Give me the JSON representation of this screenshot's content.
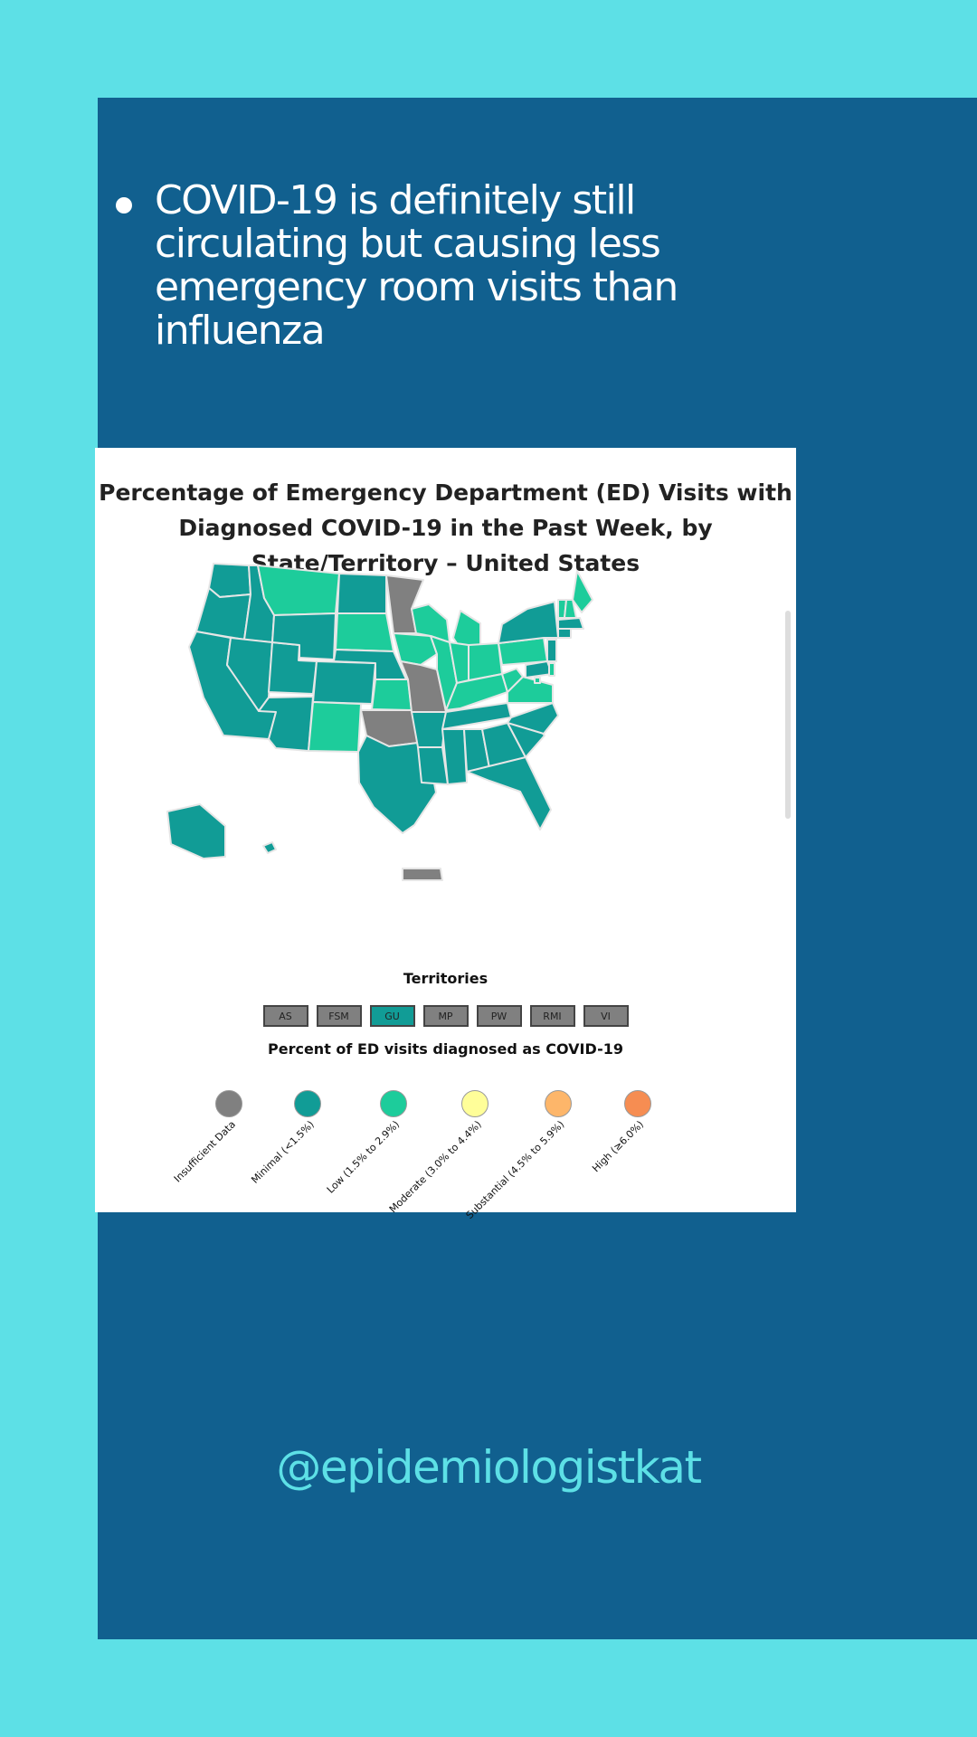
{
  "bullet": {
    "text": "COVID-19 is definitely still circulating but causing less emergency room visits than influenza"
  },
  "map": {
    "title": "Percentage of Emergency Department (ED) Visits with Diagnosed COVID-19 in the Past Week, by State/Territory – United States",
    "states": [
      {
        "name": "WA",
        "level": "minimal"
      },
      {
        "name": "OR",
        "level": "minimal"
      },
      {
        "name": "CA",
        "level": "minimal"
      },
      {
        "name": "ID",
        "level": "minimal"
      },
      {
        "name": "NV",
        "level": "minimal"
      },
      {
        "name": "UT",
        "level": "minimal"
      },
      {
        "name": "AZ",
        "level": "minimal"
      },
      {
        "name": "MT",
        "level": "low"
      },
      {
        "name": "WY",
        "level": "minimal"
      },
      {
        "name": "CO",
        "level": "minimal"
      },
      {
        "name": "NM",
        "level": "low"
      },
      {
        "name": "ND",
        "level": "minimal"
      },
      {
        "name": "SD",
        "level": "low"
      },
      {
        "name": "NE",
        "level": "minimal"
      },
      {
        "name": "KS",
        "level": "low"
      },
      {
        "name": "OK",
        "level": "insufficient"
      },
      {
        "name": "TX",
        "level": "minimal"
      },
      {
        "name": "MN",
        "level": "insufficient"
      },
      {
        "name": "IA",
        "level": "low"
      },
      {
        "name": "MO",
        "level": "insufficient"
      },
      {
        "name": "AR",
        "level": "minimal"
      },
      {
        "name": "LA",
        "level": "minimal"
      },
      {
        "name": "WI",
        "level": "low"
      },
      {
        "name": "IL",
        "level": "low"
      },
      {
        "name": "MI",
        "level": "low"
      },
      {
        "name": "IN",
        "level": "low"
      },
      {
        "name": "OH",
        "level": "low"
      },
      {
        "name": "KY",
        "level": "low"
      },
      {
        "name": "TN",
        "level": "minimal"
      },
      {
        "name": "MS",
        "level": "minimal"
      },
      {
        "name": "AL",
        "level": "minimal"
      },
      {
        "name": "GA",
        "level": "minimal"
      },
      {
        "name": "FL",
        "level": "minimal"
      },
      {
        "name": "SC",
        "level": "minimal"
      },
      {
        "name": "NC",
        "level": "minimal"
      },
      {
        "name": "VA",
        "level": "low"
      },
      {
        "name": "WV",
        "level": "low"
      },
      {
        "name": "PA",
        "level": "low"
      },
      {
        "name": "NY",
        "level": "minimal"
      },
      {
        "name": "ME",
        "level": "low"
      },
      {
        "name": "VT",
        "level": "low"
      },
      {
        "name": "NH",
        "level": "low"
      },
      {
        "name": "MA",
        "level": "minimal"
      },
      {
        "name": "CT",
        "level": "minimal"
      },
      {
        "name": "NJ",
        "level": "minimal"
      },
      {
        "name": "MD",
        "level": "minimal"
      },
      {
        "name": "DE",
        "level": "low"
      },
      {
        "name": "DC",
        "level": "low"
      },
      {
        "name": "AK",
        "level": "minimal"
      },
      {
        "name": "HI",
        "level": "minimal"
      },
      {
        "name": "PR",
        "level": "insufficient"
      }
    ],
    "territories_title": "Territories",
    "territories": [
      {
        "label": "AS",
        "level": "insufficient"
      },
      {
        "label": "FSM",
        "level": "insufficient"
      },
      {
        "label": "GU",
        "level": "minimal"
      },
      {
        "label": "MP",
        "level": "insufficient"
      },
      {
        "label": "PW",
        "level": "insufficient"
      },
      {
        "label": "RMI",
        "level": "insufficient"
      },
      {
        "label": "VI",
        "level": "insufficient"
      }
    ],
    "legend_title": "Percent of ED visits diagnosed as COVID-19",
    "legend": [
      {
        "key": "insufficient",
        "label": "Insufficient Data",
        "color": "#808080"
      },
      {
        "key": "minimal",
        "label": "Minimal (<1.5%)",
        "color": "#119c96"
      },
      {
        "key": "low",
        "label": "Low (1.5% to 2.9%)",
        "color": "#1dcc9b"
      },
      {
        "key": "moderate",
        "label": "Moderate (3.0% to 4.4%)",
        "color": "#fffe99"
      },
      {
        "key": "substantial",
        "label": "Substantial (4.5% to 5.9%)",
        "color": "#fdb66a"
      },
      {
        "key": "high",
        "label": "High (≥6.0%)",
        "color": "#f68d52"
      }
    ]
  },
  "footer": {
    "handle": "@epidemiologistkat"
  }
}
